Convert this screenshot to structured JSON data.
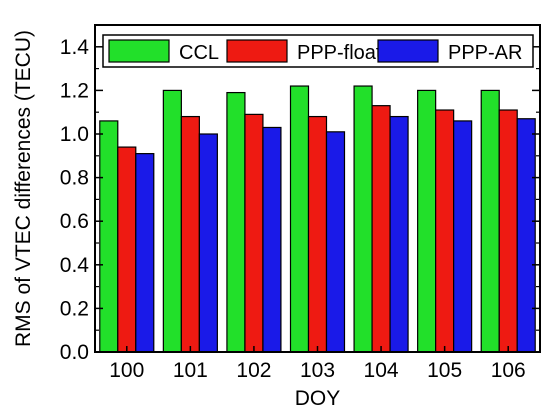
{
  "chart_data": {
    "type": "bar",
    "xlabel": "DOY",
    "ylabel": "RMS of VTEC differences (TECU)",
    "categories": [
      "100",
      "101",
      "102",
      "103",
      "104",
      "105",
      "106"
    ],
    "ylim": [
      0.0,
      1.5
    ],
    "yticks": [
      "0.0",
      "0.2",
      "0.4",
      "0.6",
      "0.8",
      "1.0",
      "1.2",
      "1.4"
    ],
    "grid": false,
    "legend_position": "top",
    "series": [
      {
        "name": "CCL",
        "color": "#22e02a",
        "values": [
          1.06,
          1.2,
          1.19,
          1.22,
          1.22,
          1.2,
          1.2
        ]
      },
      {
        "name": "PPP-float",
        "color": "#ee1a12",
        "values": [
          0.94,
          1.08,
          1.09,
          1.08,
          1.13,
          1.11,
          1.11
        ]
      },
      {
        "name": "PPP-AR",
        "color": "#1a1ae8",
        "values": [
          0.91,
          1.0,
          1.03,
          1.01,
          1.08,
          1.06,
          1.07
        ]
      }
    ]
  }
}
